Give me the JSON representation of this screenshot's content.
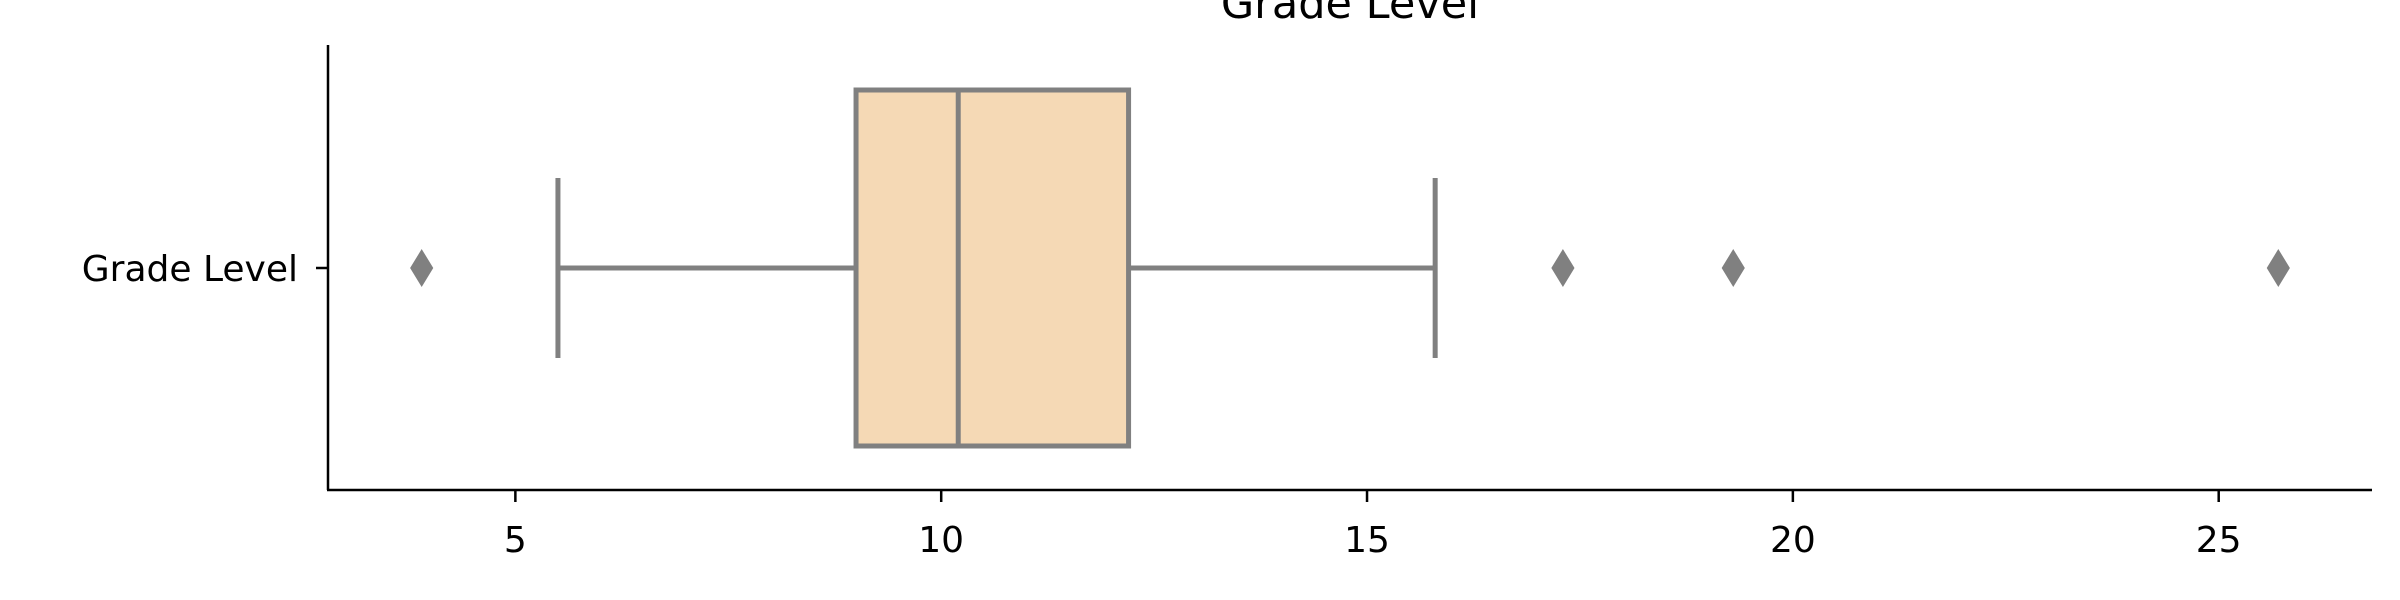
{
  "chart_data": {
    "type": "box",
    "title": "Grade Level",
    "xlabel": "",
    "ylabel": "",
    "xlim": [
      2.8,
      26.8
    ],
    "xticks": [
      5,
      10,
      15,
      20,
      25
    ],
    "categories": [
      "Grade Level"
    ],
    "series": [
      {
        "name": "Grade Level",
        "whisker_low": 5.5,
        "q1": 9.0,
        "median": 10.2,
        "q3": 12.2,
        "whisker_high": 15.8,
        "outliers": [
          3.9,
          17.3,
          19.3,
          25.7
        ]
      }
    ],
    "colors": {
      "box_fill": "#f5d9b5",
      "line": "#808080",
      "axis": "#000000"
    },
    "grid": false,
    "legend": "none"
  }
}
